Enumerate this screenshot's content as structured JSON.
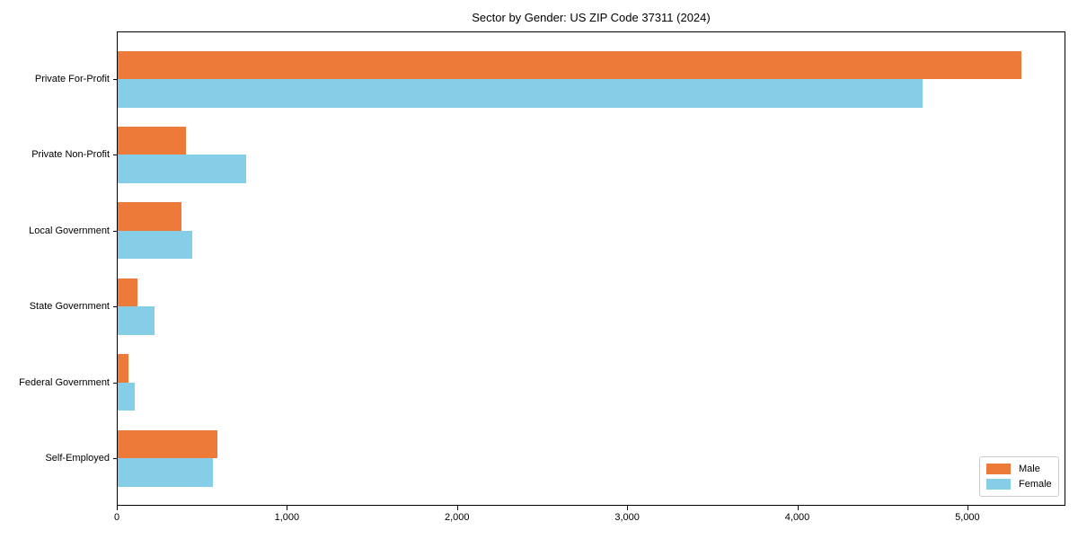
{
  "chart_data": {
    "type": "bar",
    "orientation": "horizontal",
    "title": "Sector by Gender: US ZIP Code 37311 (2024)",
    "categories": [
      "Private For-Profit",
      "Private Non-Profit",
      "Local Government",
      "State Government",
      "Federal Government",
      "Self-Employed"
    ],
    "series": [
      {
        "name": "Male",
        "color": "#ED7A39",
        "values": [
          5310,
          400,
          375,
          114,
          65,
          588
        ]
      },
      {
        "name": "Female",
        "color": "#86CEE8",
        "values": [
          4730,
          755,
          437,
          215,
          100,
          560
        ]
      }
    ],
    "xlim": [
      0,
      5576
    ],
    "xticks": [
      0,
      1000,
      2000,
      3000,
      4000,
      5000
    ],
    "xtick_labels": [
      "0",
      "1,000",
      "2,000",
      "3,000",
      "4,000",
      "5,000"
    ],
    "ylabel": "",
    "xlabel": "",
    "grid": false,
    "legend": {
      "position": "lower right",
      "entries": [
        "Male",
        "Female"
      ]
    }
  }
}
